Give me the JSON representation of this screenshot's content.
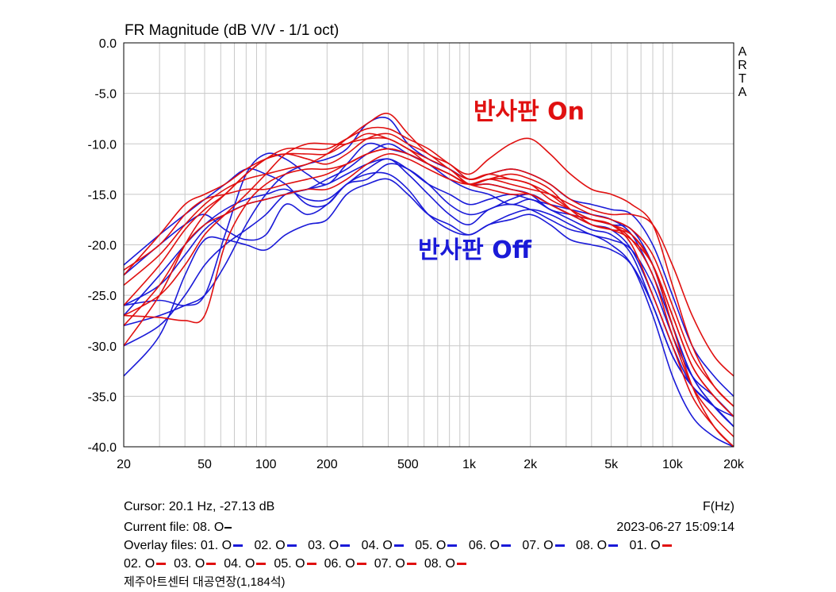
{
  "colors": {
    "on": "#e01010",
    "off": "#1a1ad8",
    "grid": "#c8c8c8",
    "frame": "#000000"
  },
  "cursor_readout": "Cursor: 20.1 Hz, -27.13 dB",
  "xunit_label": "F(Hz)",
  "current_file_label": "Current file: 08. O",
  "datetime": "2023-06-27   15:09:14",
  "overlay_label": "Overlay files:",
  "overlay_files": [
    {
      "label": "01. O",
      "color": "off"
    },
    {
      "label": "02. O",
      "color": "off"
    },
    {
      "label": "03. O",
      "color": "off"
    },
    {
      "label": "04. O",
      "color": "off"
    },
    {
      "label": "05. O",
      "color": "off"
    },
    {
      "label": "06. O",
      "color": "off"
    },
    {
      "label": "07. O",
      "color": "off"
    },
    {
      "label": "08. O",
      "color": "off"
    },
    {
      "label": "01. O",
      "color": "on"
    },
    {
      "label": "02. O",
      "color": "on"
    },
    {
      "label": "03. O",
      "color": "on"
    },
    {
      "label": "04. O",
      "color": "on"
    },
    {
      "label": "05. O",
      "color": "on"
    },
    {
      "label": "06. O",
      "color": "on"
    },
    {
      "label": "07. O",
      "color": "on"
    },
    {
      "label": "08. O",
      "color": "on"
    }
  ],
  "venue_caption": "제주아트센터 대공연장(1,184석)",
  "chart_data": {
    "type": "line",
    "title": "FR Magnitude (dB V/V - 1/1 oct)",
    "xlabel": "F(Hz)",
    "ylabel": "",
    "xscale": "log",
    "xlim": [
      20,
      20000
    ],
    "ylim": [
      -40,
      0
    ],
    "grid": true,
    "side_label": [
      "A",
      "R",
      "T",
      "A"
    ],
    "ytick_labels": [
      "0.0",
      "-5.0",
      "-10.0",
      "-15.0",
      "-20.0",
      "-25.0",
      "-30.0",
      "-35.0",
      "-40.0"
    ],
    "ytick_values": [
      0,
      -5,
      -10,
      -15,
      -20,
      -25,
      -30,
      -35,
      -40
    ],
    "xtick_labels": [
      "20",
      "50",
      "100",
      "200",
      "500",
      "1k",
      "2k",
      "5k",
      "10k",
      "20k"
    ],
    "xtick_values": [
      20,
      50,
      100,
      200,
      500,
      1000,
      2000,
      5000,
      10000,
      20000
    ],
    "annotations": [
      {
        "text": "반사판 On",
        "freq": 1050,
        "db": -7.6,
        "color": "on"
      },
      {
        "text": "반사판 Off",
        "freq": 560,
        "db": -21.3,
        "color": "off"
      }
    ],
    "x": [
      20,
      30,
      40,
      50,
      63,
      80,
      100,
      125,
      160,
      200,
      250,
      315,
      400,
      500,
      630,
      800,
      1000,
      1250,
      1600,
      2000,
      2500,
      3150,
      4000,
      5000,
      6300,
      8000,
      10000,
      12500,
      16000,
      20000
    ],
    "series": [
      {
        "color": "off",
        "values": [
          -26,
          -25.5,
          -26,
          -25,
          -19,
          -13,
          -11,
          -11.5,
          -13,
          -14,
          -12,
          -10,
          -10.5,
          -11,
          -12,
          -13.5,
          -14.5,
          -15,
          -16,
          -15.5,
          -16.5,
          -17.5,
          -18.5,
          -19,
          -21,
          -26,
          -31,
          -34,
          -36,
          -38
        ]
      },
      {
        "color": "off",
        "values": [
          -22,
          -19,
          -17,
          -15.5,
          -14,
          -12.5,
          -13,
          -14,
          -16,
          -16,
          -14,
          -13.5,
          -12,
          -12.5,
          -14,
          -16,
          -17,
          -16.5,
          -15.5,
          -15,
          -16,
          -17,
          -18,
          -18.5,
          -20.5,
          -25,
          -30,
          -34,
          -36,
          -38
        ]
      },
      {
        "color": "off",
        "values": [
          -27,
          -23,
          -20,
          -18,
          -16.5,
          -15.5,
          -15,
          -14.5,
          -15.5,
          -15.5,
          -14,
          -12.5,
          -11.5,
          -13,
          -15,
          -17,
          -18,
          -16.5,
          -16,
          -16.5,
          -17.5,
          -18.5,
          -19,
          -20,
          -22,
          -27,
          -33,
          -37,
          -39,
          -40
        ]
      },
      {
        "color": "off",
        "values": [
          -23,
          -20,
          -18,
          -17,
          -18.5,
          -19.5,
          -19,
          -16,
          -17,
          -16,
          -14,
          -13,
          -13,
          -14.5,
          -17,
          -18.5,
          -19,
          -18,
          -17,
          -16.5,
          -17,
          -18,
          -19,
          -19.5,
          -20.5,
          -24,
          -29,
          -33,
          -35,
          -37
        ]
      },
      {
        "color": "off",
        "values": [
          -33,
          -29,
          -23,
          -19.5,
          -19.5,
          -20,
          -20.5,
          -19,
          -18,
          -17.5,
          -15,
          -14,
          -13.5,
          -15,
          -17,
          -18,
          -19,
          -18,
          -17.5,
          -17,
          -18,
          -19.5,
          -20,
          -20.5,
          -22,
          -26,
          -31,
          -34,
          -36,
          -37
        ]
      },
      {
        "color": "off",
        "values": [
          -30,
          -28,
          -25,
          -22,
          -20,
          -18.5,
          -17,
          -15,
          -14.5,
          -13.5,
          -12.5,
          -11,
          -10,
          -11,
          -12,
          -13,
          -14,
          -14,
          -14.5,
          -15,
          -16.5,
          -17,
          -17.5,
          -18,
          -18.5,
          -22,
          -28,
          -33,
          -36,
          -38
        ]
      },
      {
        "color": "off",
        "values": [
          -28,
          -27,
          -26,
          -25,
          -22,
          -18,
          -15,
          -13,
          -12,
          -11.5,
          -10.5,
          -8,
          -7.5,
          -10,
          -11.5,
          -12.5,
          -13.5,
          -13,
          -12.5,
          -13,
          -14,
          -15.5,
          -16,
          -16.5,
          -17,
          -20,
          -25,
          -30,
          -33,
          -35
        ]
      },
      {
        "color": "off",
        "values": [
          -26,
          -24,
          -21,
          -18.5,
          -17,
          -16,
          -15.5,
          -15,
          -14.5,
          -14,
          -13,
          -12,
          -11.5,
          -12.5,
          -14,
          -15,
          -16,
          -15.5,
          -15,
          -15.5,
          -16,
          -16.5,
          -17,
          -17.5,
          -19,
          -23,
          -28,
          -33,
          -36,
          -38
        ]
      },
      {
        "color": "on",
        "values": [
          -27,
          -27.2,
          -27.5,
          -27,
          -20,
          -16,
          -14,
          -13,
          -12.5,
          -12.5,
          -12,
          -11,
          -10.5,
          -11,
          -12,
          -13,
          -14,
          -13.5,
          -13,
          -13.5,
          -14.5,
          -16.5,
          -18,
          -18.5,
          -19,
          -22,
          -28,
          -34,
          -38,
          -40
        ]
      },
      {
        "color": "on",
        "values": [
          -23,
          -19,
          -16,
          -15,
          -14,
          -12.5,
          -11.5,
          -11,
          -11,
          -11,
          -10,
          -9.5,
          -9.5,
          -10.5,
          -11.5,
          -12.5,
          -14,
          -14,
          -14.5,
          -15,
          -16,
          -17,
          -17.5,
          -18,
          -20,
          -25,
          -30,
          -35,
          -38,
          -40
        ]
      },
      {
        "color": "on",
        "values": [
          -30,
          -25,
          -20,
          -17,
          -15,
          -13,
          -11.5,
          -10.5,
          -10.5,
          -10.5,
          -9.5,
          -8.5,
          -8.5,
          -9.5,
          -10.5,
          -12,
          -13,
          -11.5,
          -10,
          -9.5,
          -11,
          -13,
          -14.5,
          -15,
          -16,
          -18,
          -24,
          -30,
          -34,
          -36
        ]
      },
      {
        "color": "on",
        "values": [
          -26,
          -22,
          -18.5,
          -16.5,
          -15,
          -13,
          -11.5,
          -11,
          -11.5,
          -12,
          -11,
          -9.5,
          -9,
          -10,
          -11,
          -12.5,
          -13.5,
          -13,
          -13.5,
          -14,
          -15.5,
          -16.5,
          -17.5,
          -18,
          -19,
          -22,
          -27,
          -32,
          -35,
          -37
        ]
      },
      {
        "color": "on",
        "values": [
          -24,
          -21,
          -18,
          -16,
          -14.5,
          -13.5,
          -13,
          -12.5,
          -12,
          -11,
          -9.5,
          -8,
          -7,
          -9,
          -11,
          -12,
          -13.5,
          -13,
          -12.5,
          -13,
          -14,
          -15.5,
          -16.5,
          -17,
          -17,
          -18,
          -22,
          -27,
          -31,
          -33
        ]
      },
      {
        "color": "on",
        "values": [
          -28,
          -24,
          -20,
          -18,
          -17,
          -16,
          -15.5,
          -15,
          -14.5,
          -14.5,
          -13.5,
          -12,
          -11,
          -11.5,
          -12.5,
          -13.5,
          -14,
          -13.5,
          -14,
          -14.5,
          -15,
          -16,
          -17,
          -17.5,
          -18.5,
          -21,
          -26,
          -31,
          -34,
          -36
        ]
      },
      {
        "color": "on",
        "values": [
          -27,
          -25,
          -22,
          -19,
          -17,
          -15,
          -13,
          -11,
          -10,
          -10,
          -10,
          -9,
          -9.5,
          -10.5,
          -12,
          -13,
          -14,
          -13.5,
          -13.5,
          -14,
          -15,
          -16.5,
          -17.5,
          -18,
          -19.5,
          -23,
          -29,
          -34,
          -37,
          -39
        ]
      },
      {
        "color": "on",
        "values": [
          -22.5,
          -20,
          -17,
          -15.5,
          -15,
          -14.5,
          -14.5,
          -14,
          -13.5,
          -13,
          -12,
          -11,
          -10.5,
          -11,
          -12,
          -13,
          -14,
          -14.5,
          -15,
          -15,
          -16,
          -17,
          -18,
          -18.5,
          -19.5,
          -22,
          -27,
          -32,
          -35,
          -37
        ]
      }
    ]
  }
}
